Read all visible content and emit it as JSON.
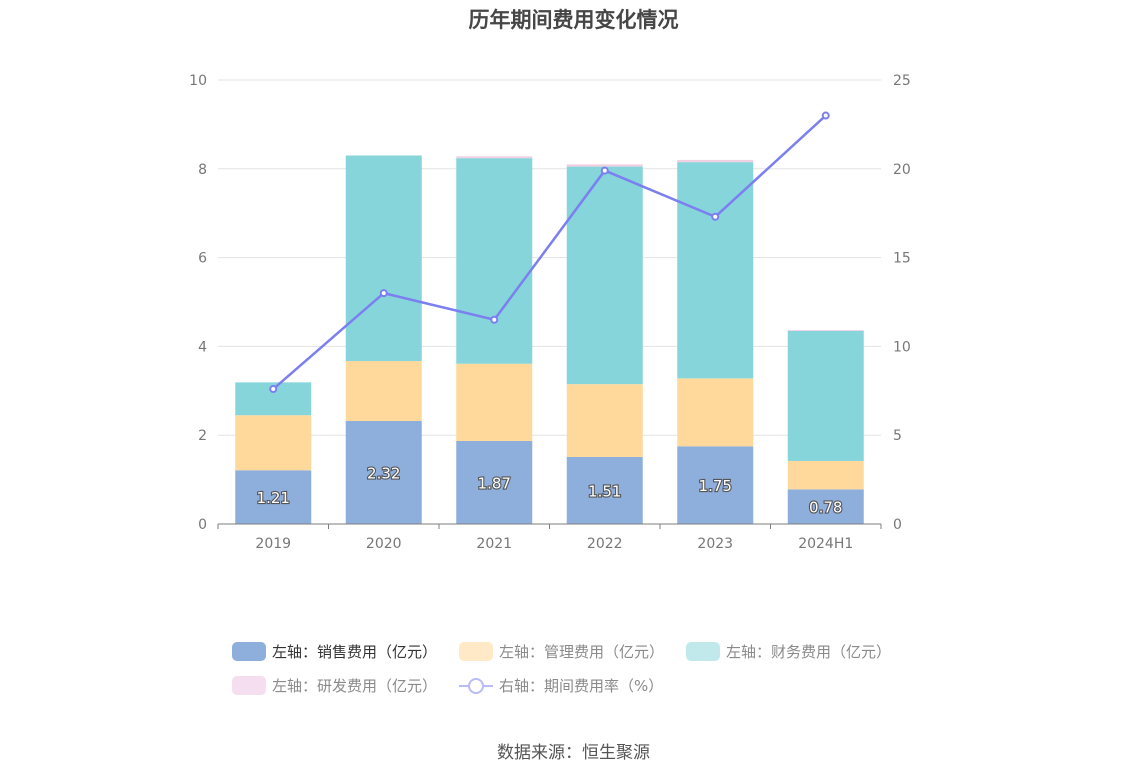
{
  "chart_data": {
    "type": "bar",
    "title": "历年期间费用变化情况",
    "categories": [
      "2019",
      "2020",
      "2021",
      "2022",
      "2023",
      "2024H1"
    ],
    "y_left": {
      "min": 0,
      "max": 10,
      "ticks": [
        "0",
        "2",
        "4",
        "6",
        "8",
        "10"
      ]
    },
    "y_right": {
      "min": 0,
      "max": 25,
      "ticks": [
        "0",
        "5",
        "10",
        "15",
        "20",
        "25"
      ]
    },
    "grid": true,
    "legend_placement": "bottom",
    "series": [
      {
        "name": "左轴：销售费用（亿元）",
        "axis": "left",
        "kind": "bar",
        "color": "#8eaedb",
        "values": [
          1.21,
          2.32,
          1.87,
          1.51,
          1.75,
          0.78
        ],
        "labels": [
          "1.21",
          "2.32",
          "1.87",
          "1.51",
          "1.75",
          "0.78"
        ]
      },
      {
        "name": "左轴：管理费用（亿元）",
        "axis": "left",
        "kind": "bar",
        "color": "#fed99b",
        "values": [
          1.24,
          1.35,
          1.74,
          1.64,
          1.53,
          0.64
        ]
      },
      {
        "name": "左轴：财务费用（亿元）",
        "axis": "left",
        "kind": "bar",
        "color": "#86d5da",
        "values": [
          0.74,
          4.63,
          4.63,
          4.9,
          4.87,
          2.93
        ]
      },
      {
        "name": "左轴：研发费用（亿元）",
        "axis": "left",
        "kind": "bar",
        "color": "#f1cfe3",
        "values": [
          0.0,
          0.0,
          0.04,
          0.05,
          0.05,
          0.02
        ]
      },
      {
        "name": "右轴：期间费用率（%）",
        "axis": "right",
        "kind": "line",
        "color": "#7b7ff0",
        "values": [
          7.6,
          13.0,
          11.5,
          19.9,
          17.3,
          23.0
        ]
      }
    ]
  },
  "legend": {
    "items": [
      {
        "label": "左轴：销售费用（亿元）",
        "color": "#8eaedb",
        "active": true
      },
      {
        "label": "左轴：管理费用（亿元）",
        "color": "#ffe9c6",
        "active": false
      },
      {
        "label": "左轴：财务费用（亿元）",
        "color": "#c1e9ec",
        "active": false
      },
      {
        "label": "左轴：研发费用（亿元）",
        "color": "#f4deef",
        "active": false
      },
      {
        "label": "右轴：期间费用率（%）",
        "color": "#b9bbf5",
        "active": false
      }
    ]
  },
  "source": "数据来源：恒生聚源"
}
